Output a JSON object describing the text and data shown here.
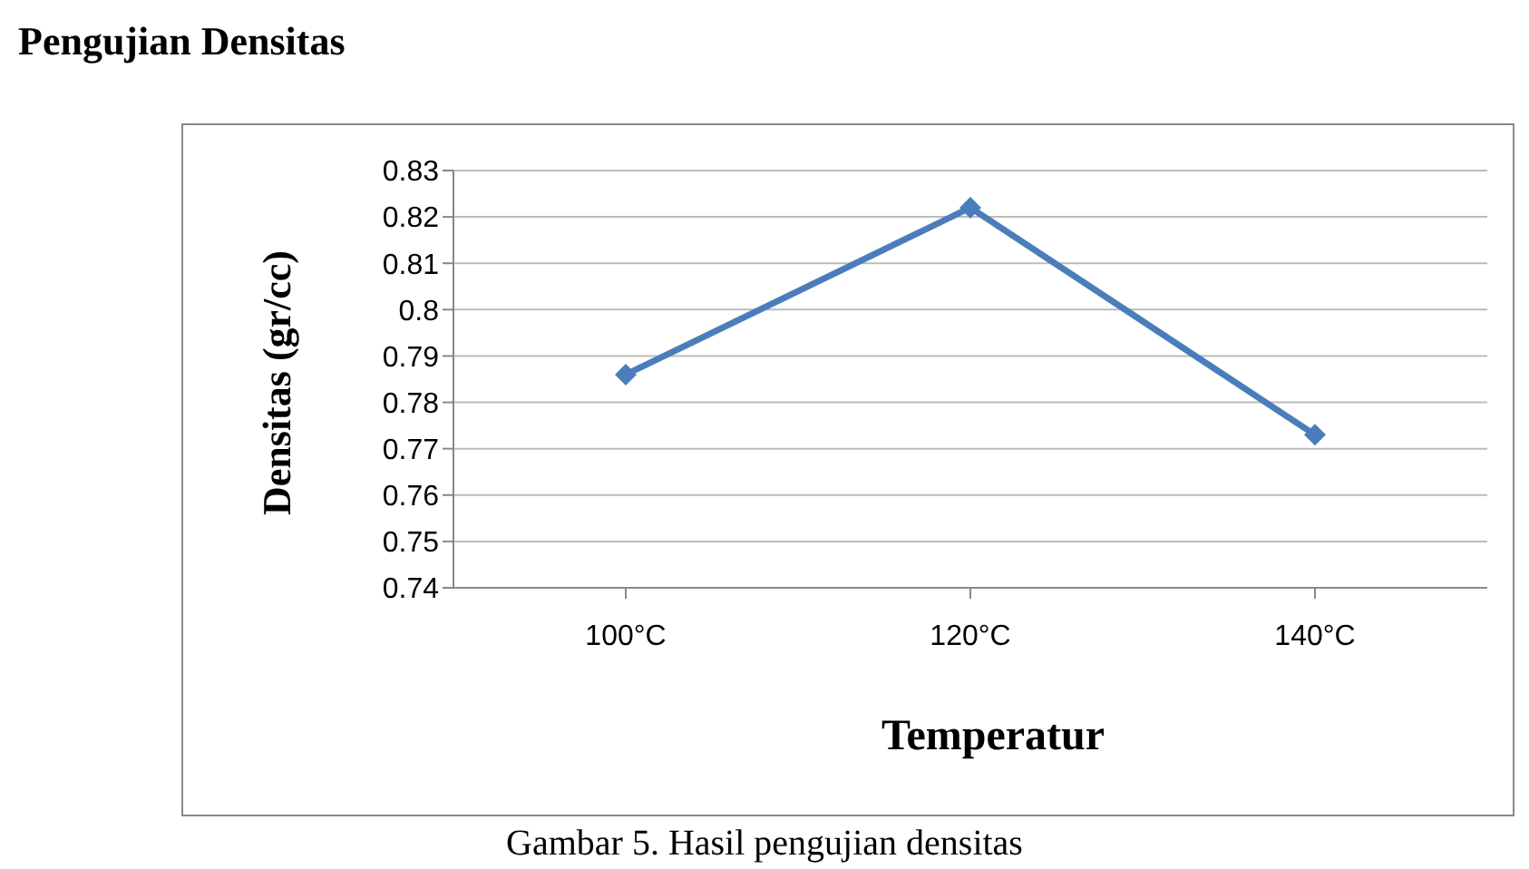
{
  "chart_data": {
    "type": "line",
    "title": "Pengujian Densitas",
    "xlabel": "Temperatur",
    "ylabel": "Densitas (gr/cc)",
    "annotations": [
      "Gambar 5. Hasil pengujian densitas"
    ],
    "categories": [
      "100°C",
      "120°C",
      "140°C"
    ],
    "series": [
      {
        "color": "#4a7ebb",
        "values": [
          0.786,
          0.822,
          0.773
        ]
      }
    ],
    "ylim": [
      0.74,
      0.83
    ],
    "yticks": [
      0.74,
      0.75,
      0.76,
      0.77,
      0.78,
      0.79,
      0.8,
      0.81,
      0.82,
      0.83
    ],
    "grid": "y",
    "legend": false,
    "marker": "diamond",
    "line_style": "solid"
  }
}
